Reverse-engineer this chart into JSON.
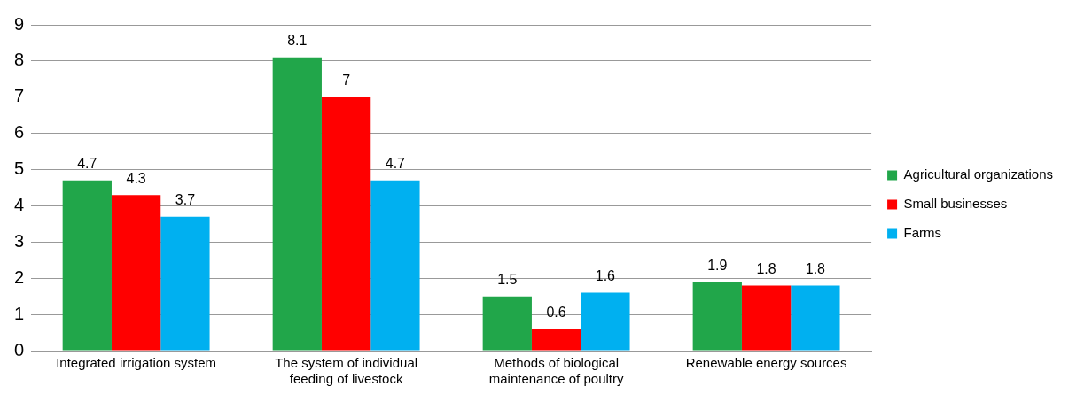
{
  "chart_data": {
    "type": "bar",
    "categories": [
      "Integrated irrigation system",
      "The system of individual feeding of livestock",
      "Methods of biological maintenance of poultry",
      "Renewable energy sources"
    ],
    "series": [
      {
        "name": "Agricultural organizations",
        "color": "#21a64a",
        "values": [
          4.7,
          8.1,
          1.5,
          1.9
        ]
      },
      {
        "name": "Small businesses",
        "color": "#ff0000",
        "values": [
          4.3,
          7,
          0.6,
          1.8
        ]
      },
      {
        "name": "Farms",
        "color": "#00b0f0",
        "values": [
          3.7,
          4.7,
          1.6,
          1.8
        ]
      }
    ],
    "ylim": [
      0,
      9
    ],
    "yticks": [
      0,
      1,
      2,
      3,
      4,
      5,
      6,
      7,
      8,
      9
    ],
    "grid": "y",
    "legend": "right",
    "data_labels": true
  }
}
